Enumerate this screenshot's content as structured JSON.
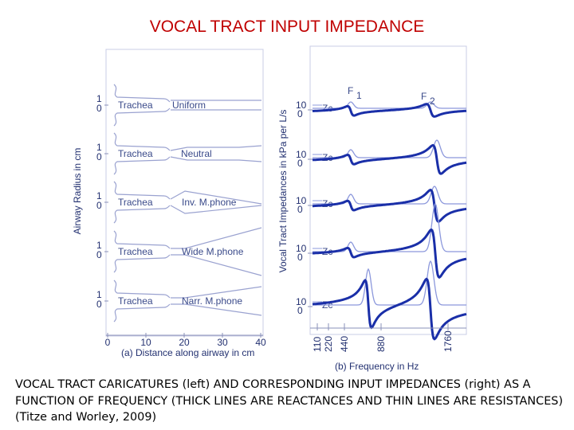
{
  "title": "VOCAL TRACT INPUT IMPEDANCE",
  "caption": "VOCAL TRACT CARICATURES (left) AND CORRESPONDING INPUT IMPEDANCES (right) AS A FUNCTION OF FREQUENCY  (THICK LINES ARE REACTANCES AND THIN LINES ARE RESISTANCES) (Titze and Worley, 2009)",
  "left_panel": {
    "y_axis_label": "Airway Radius in cm",
    "x_axis_label": "(a)  Distance along airway in cm",
    "x_ticks": [
      "0",
      "10",
      "20",
      "30",
      "40"
    ],
    "tick_one": "1",
    "tick_zero": "0",
    "trachea_label": "Trachea",
    "rows": [
      {
        "shape": "Uniform"
      },
      {
        "shape": "Neutral"
      },
      {
        "shape": "Inv. M.phone"
      },
      {
        "shape": "Wide M.phone"
      },
      {
        "shape": "Narr. M.phone"
      }
    ]
  },
  "right_panel": {
    "y_axis_label": "Vocal Tract Impedances in kPa per L/s",
    "x_axis_label": "(b)   Frequency in Hz",
    "freq_ticks": [
      "110",
      "220",
      "440",
      "880",
      "1760"
    ],
    "tick_ten": "10",
    "tick_zero": "0",
    "zc_label": "Zc",
    "formant_1": "F",
    "formant_1_sub": "1",
    "formant_2": "F",
    "formant_2_sub": "2"
  },
  "colors": {
    "title": "#c00000",
    "thick_line": "#1a2fa8",
    "thin_line": "#8c98dc",
    "label": "#3a4a8a"
  }
}
